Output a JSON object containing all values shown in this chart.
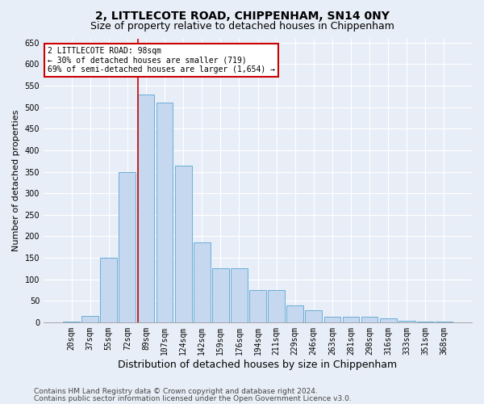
{
  "title": "2, LITTLECOTE ROAD, CHIPPENHAM, SN14 0NY",
  "subtitle": "Size of property relative to detached houses in Chippenham",
  "xlabel": "Distribution of detached houses by size in Chippenham",
  "ylabel": "Number of detached properties",
  "categories": [
    "20sqm",
    "37sqm",
    "55sqm",
    "72sqm",
    "89sqm",
    "107sqm",
    "124sqm",
    "142sqm",
    "159sqm",
    "176sqm",
    "194sqm",
    "211sqm",
    "229sqm",
    "246sqm",
    "263sqm",
    "281sqm",
    "298sqm",
    "316sqm",
    "333sqm",
    "351sqm",
    "368sqm"
  ],
  "values": [
    2,
    15,
    150,
    350,
    530,
    510,
    365,
    185,
    125,
    125,
    75,
    75,
    40,
    27,
    13,
    13,
    13,
    10,
    3,
    2,
    1
  ],
  "bar_color": "#c5d8ef",
  "bar_edge_color": "#6aaed6",
  "vline_x_index": 4,
  "vline_color": "#cc0000",
  "annotation_text": "2 LITTLECOTE ROAD: 98sqm\n← 30% of detached houses are smaller (719)\n69% of semi-detached houses are larger (1,654) →",
  "annotation_box_color": "#ffffff",
  "annotation_box_edge": "#cc0000",
  "ylim": [
    0,
    660
  ],
  "yticks": [
    0,
    50,
    100,
    150,
    200,
    250,
    300,
    350,
    400,
    450,
    500,
    550,
    600,
    650
  ],
  "background_color": "#e8eef7",
  "grid_color": "#ffffff",
  "footer_line1": "Contains HM Land Registry data © Crown copyright and database right 2024.",
  "footer_line2": "Contains public sector information licensed under the Open Government Licence v3.0.",
  "title_fontsize": 10,
  "subtitle_fontsize": 9,
  "xlabel_fontsize": 9,
  "ylabel_fontsize": 8,
  "tick_fontsize": 7,
  "annotation_fontsize": 7,
  "footer_fontsize": 6.5
}
